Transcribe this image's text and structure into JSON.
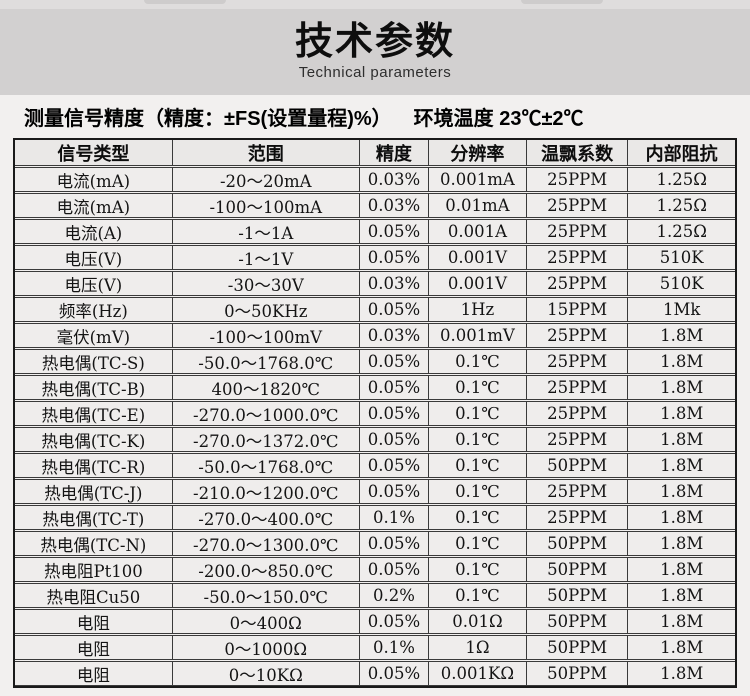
{
  "page": {
    "background": "#f2f0ef",
    "band_color": "#d2d0d0",
    "border_color": "#1a1a1a"
  },
  "header": {
    "title": "技术参数",
    "subtitle": "Technical parameters"
  },
  "intro": {
    "left": "测量信号精度（精度：±FS(设置量程)%）",
    "right": "环境温度 23℃±2℃"
  },
  "table": {
    "columns": [
      "信号类型",
      "范围",
      "精度",
      "分辨率",
      "温飘系数",
      "内部阻抗"
    ],
    "rows": [
      [
        "电流(mA)",
        "-20～20mA",
        "0.03%",
        "0.001mA",
        "25PPM",
        "1.25Ω"
      ],
      [
        "电流(mA)",
        "-100～100mA",
        "0.03%",
        "0.01mA",
        "25PPM",
        "1.25Ω"
      ],
      [
        "电流(A)",
        "-1～1A",
        "0.05%",
        "0.001A",
        "25PPM",
        "1.25Ω"
      ],
      [
        "电压(V)",
        "-1～1V",
        "0.05%",
        "0.001V",
        "25PPM",
        "510K"
      ],
      [
        "电压(V)",
        "-30～30V",
        "0.03%",
        "0.001V",
        "25PPM",
        "510K"
      ],
      [
        "频率(Hz)",
        "0～50KHz",
        "0.05%",
        "1Hz",
        "15PPM",
        "1Mk"
      ],
      [
        "毫伏(mV)",
        "-100～100mV",
        "0.03%",
        "0.001mV",
        "25PPM",
        "1.8M"
      ],
      [
        "热电偶(TC-S)",
        "-50.0～1768.0℃",
        "0.05%",
        "0.1℃",
        "25PPM",
        "1.8M"
      ],
      [
        "热电偶(TC-B)",
        "400～1820℃",
        "0.05%",
        "0.1℃",
        "25PPM",
        "1.8M"
      ],
      [
        "热电偶(TC-E)",
        "-270.0～1000.0℃",
        "0.05%",
        "0.1℃",
        "25PPM",
        "1.8M"
      ],
      [
        "热电偶(TC-K)",
        "-270.0～1372.0℃",
        "0.05%",
        "0.1℃",
        "25PPM",
        "1.8M"
      ],
      [
        "热电偶(TC-R)",
        "-50.0～1768.0℃",
        "0.05%",
        "0.1℃",
        "50PPM",
        "1.8M"
      ],
      [
        "热电偶(TC-J)",
        "-210.0～1200.0℃",
        "0.05%",
        "0.1℃",
        "25PPM",
        "1.8M"
      ],
      [
        "热电偶(TC-T)",
        "-270.0～400.0℃",
        "0.1%",
        "0.1℃",
        "25PPM",
        "1.8M"
      ],
      [
        "热电偶(TC-N)",
        "-270.0～1300.0℃",
        "0.05%",
        "0.1℃",
        "50PPM",
        "1.8M"
      ],
      [
        "热电阻Pt100",
        "-200.0～850.0℃",
        "0.05%",
        "0.1℃",
        "50PPM",
        "1.8M"
      ],
      [
        "热电阻Cu50",
        "-50.0～150.0℃",
        "0.2%",
        "0.1℃",
        "50PPM",
        "1.8M"
      ],
      [
        "电阻",
        "0～400Ω",
        "0.05%",
        "0.01Ω",
        "50PPM",
        "1.8M"
      ],
      [
        "电阻",
        "0～1000Ω",
        "0.1%",
        "1Ω",
        "50PPM",
        "1.8M"
      ],
      [
        "电阻",
        "0～10KΩ",
        "0.05%",
        "0.001KΩ",
        "50PPM",
        "1.8M"
      ]
    ]
  }
}
